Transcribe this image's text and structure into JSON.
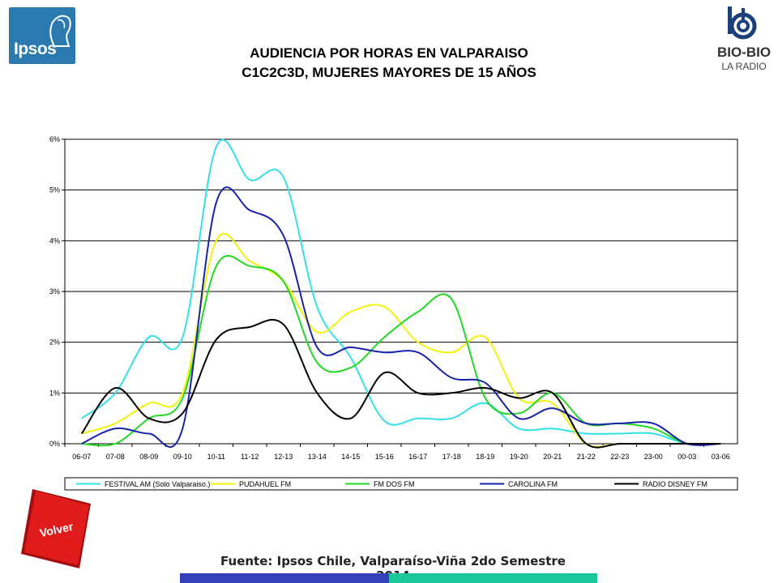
{
  "header": {
    "logo_left_text": "Ipsos",
    "title_line1": "AUDIENCIA POR HORAS EN VALPARAISO",
    "title_line2": "C1C2C3D, MUJERES MAYORES DE 15 AÑOS",
    "logo_right_text": "BIO-BIO",
    "logo_right_subtext": "LA RADIO"
  },
  "footer": {
    "source": "Fuente: Ipsos Chile, Valparaíso-Viña 2do Semestre 2014",
    "volver_label": "Volver"
  },
  "colors": {
    "ipsos_blue": "#2a7ab0",
    "volver_red": "#e01b1b",
    "bar_blue": "#3340b8",
    "bar_teal": "#1dc79c"
  },
  "chart_data": {
    "type": "line",
    "categories": [
      "06-07",
      "07-08",
      "08-09",
      "09-10",
      "10-11",
      "11-12",
      "12-13",
      "13-14",
      "14-15",
      "15-16",
      "16-17",
      "17-18",
      "18-19",
      "19-20",
      "20-21",
      "21-22",
      "22-23",
      "23-00",
      "00-03",
      "03-06"
    ],
    "y_ticks": [
      "0%",
      "1%",
      "2%",
      "3%",
      "4%",
      "5%",
      "6%"
    ],
    "ylim": [
      0,
      6
    ],
    "grid": true,
    "legend_position": "bottom",
    "series": [
      {
        "name": "FESTIVAL AM (Solo Valparaiso.)",
        "color": "#33e0e8",
        "values": [
          0.5,
          1.0,
          2.1,
          2.1,
          5.85,
          5.2,
          5.25,
          2.7,
          1.7,
          0.45,
          0.5,
          0.5,
          0.8,
          0.3,
          0.3,
          0.2,
          0.2,
          0.2,
          0.0,
          0.0
        ]
      },
      {
        "name": "PUDAHUEL FM",
        "color": "#f2f20a",
        "values": [
          0.2,
          0.4,
          0.8,
          1.0,
          4.0,
          3.6,
          3.2,
          2.2,
          2.6,
          2.7,
          2.0,
          1.8,
          2.1,
          0.9,
          0.8,
          0.0,
          0.0,
          0.0,
          0.0,
          0.0
        ]
      },
      {
        "name": "FM DOS FM",
        "color": "#22d822",
        "values": [
          0.0,
          0.0,
          0.5,
          0.9,
          3.5,
          3.5,
          3.2,
          1.6,
          1.5,
          2.1,
          2.6,
          2.85,
          0.9,
          0.6,
          1.0,
          0.4,
          0.4,
          0.3,
          0.0,
          0.0
        ]
      },
      {
        "name": "CAROLINA FM",
        "color": "#1a22a8",
        "values": [
          0.0,
          0.3,
          0.2,
          0.3,
          4.75,
          4.6,
          4.1,
          1.9,
          1.9,
          1.8,
          1.8,
          1.3,
          1.2,
          0.5,
          0.7,
          0.4,
          0.4,
          0.4,
          0.0,
          0.0
        ]
      },
      {
        "name": "RADIO DISNEY FM",
        "color": "#000000",
        "values": [
          0.2,
          1.1,
          0.5,
          0.6,
          2.05,
          2.3,
          2.35,
          1.0,
          0.5,
          1.4,
          1.0,
          1.0,
          1.1,
          0.9,
          1.0,
          0.0,
          0.0,
          0.0,
          0.0,
          0.0
        ]
      }
    ]
  }
}
